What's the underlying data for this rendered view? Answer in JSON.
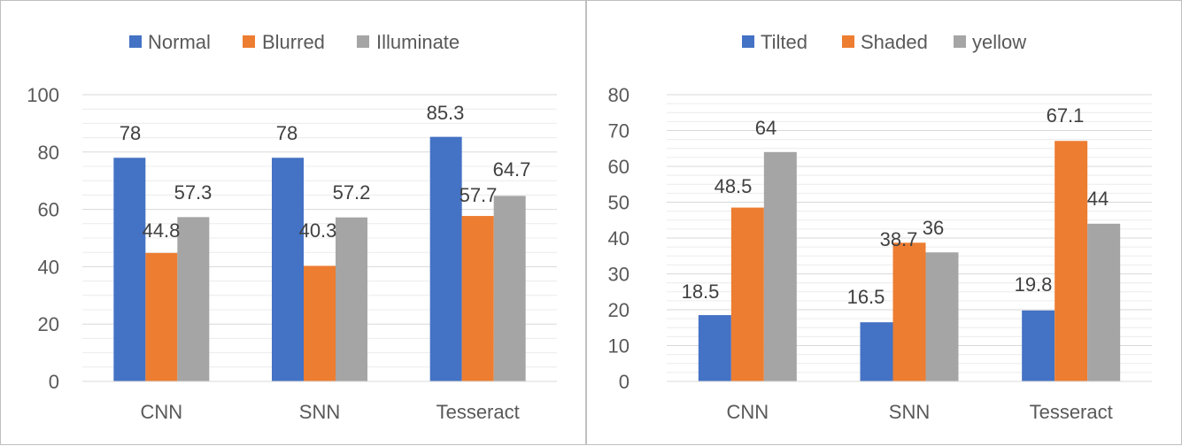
{
  "chart_data": [
    {
      "type": "bar",
      "categories": [
        "CNN",
        "SNN",
        "Tesseract"
      ],
      "series": [
        {
          "name": "Normal",
          "values": [
            78,
            78,
            85.3
          ],
          "color": "#4472C4"
        },
        {
          "name": "Blurred",
          "values": [
            44.8,
            40.3,
            57.7
          ],
          "color": "#ED7D31"
        },
        {
          "name": "Illuminate",
          "values": [
            57.3,
            57.2,
            64.7
          ],
          "color": "#A5A5A5"
        }
      ],
      "data_labels": [
        [
          "78",
          "78",
          "85.3"
        ],
        [
          "44.8",
          "40.3",
          "57.7"
        ],
        [
          "57.3",
          "57.2",
          "64.7"
        ]
      ],
      "ylim": [
        0,
        100
      ],
      "yticks": [
        0,
        20,
        40,
        60,
        80,
        100
      ],
      "ytick_labels": [
        "0",
        "20",
        "40",
        "60",
        "80",
        "100"
      ],
      "grid": true,
      "legend_position": "top"
    },
    {
      "type": "bar",
      "categories": [
        "CNN",
        "SNN",
        "Tesseract"
      ],
      "series": [
        {
          "name": "Tilted",
          "values": [
            18.5,
            16.5,
            19.8
          ],
          "color": "#4472C4"
        },
        {
          "name": "Shaded",
          "values": [
            48.5,
            38.7,
            67.1
          ],
          "color": "#ED7D31"
        },
        {
          "name": "yellow",
          "values": [
            64,
            36,
            44
          ],
          "color": "#A5A5A5"
        }
      ],
      "data_labels": [
        [
          "18.5",
          "16.5",
          "19.8"
        ],
        [
          "48.5",
          "38.7",
          "67.1"
        ],
        [
          "64",
          "36",
          "44"
        ]
      ],
      "ylim": [
        0,
        80
      ],
      "yticks": [
        0,
        10,
        20,
        30,
        40,
        50,
        60,
        70,
        80
      ],
      "ytick_labels": [
        "0",
        "10",
        "20",
        "30",
        "40",
        "50",
        "60",
        "70",
        "80"
      ],
      "grid": true,
      "legend_position": "top"
    }
  ]
}
